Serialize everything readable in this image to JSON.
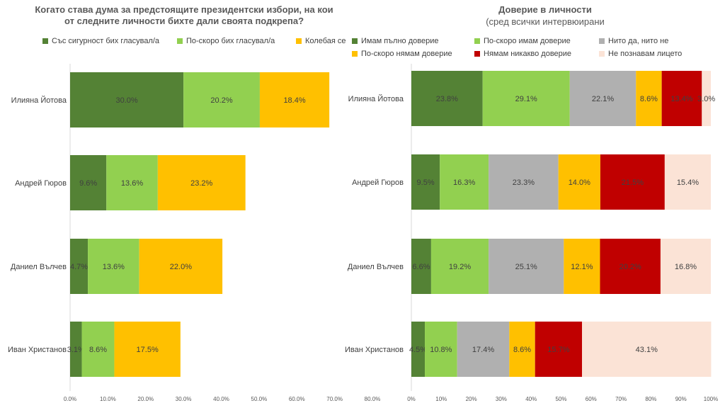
{
  "chart_data": [
    {
      "type": "bar",
      "orientation": "horizontal",
      "stacked": true,
      "title_line1": "Когато става дума за предстоящите президентски избори, на кои",
      "title_line2": "от следните личности бихте дали своята подкрепа?",
      "categories": [
        "Илияна Йотова",
        "Андрей Гюров",
        "Даниел Вълчев",
        "Иван Христанов"
      ],
      "series": [
        {
          "name": "Със сигурност бих гласувал/а",
          "color": "#548235",
          "values": [
            30.0,
            9.6,
            4.7,
            3.1
          ],
          "labels": [
            "30.0%",
            "9.6%",
            "4.7%",
            "3.1%"
          ]
        },
        {
          "name": "По-скоро бих гласувал/а",
          "color": "#92d050",
          "values": [
            20.2,
            13.6,
            13.6,
            8.6
          ],
          "labels": [
            "20.2%",
            "13.6%",
            "13.6%",
            "8.6%"
          ]
        },
        {
          "name": "Колебая се",
          "color": "#ffc000",
          "values": [
            18.4,
            23.2,
            22.0,
            17.5
          ],
          "labels": [
            "18.4%",
            "23.2%",
            "22.0%",
            "17.5%"
          ]
        }
      ],
      "xlim": [
        0,
        80
      ],
      "xticks": [
        "0.0%",
        "10.0%",
        "20.0%",
        "30.0%",
        "40.0%",
        "50.0%",
        "60.0%",
        "70.0%",
        "80.0%"
      ],
      "legend_position": "top",
      "grid": false
    },
    {
      "type": "bar",
      "orientation": "horizontal",
      "stacked": true,
      "title": "Доверие в личности",
      "subtitle": "(сред всички интервюирани",
      "categories": [
        "Илияна Йотова",
        "Андрей Гюров",
        "Даниел Вълчев",
        "Иван Христанов"
      ],
      "series": [
        {
          "name": "Имам пълно доверие",
          "color": "#548235",
          "values": [
            23.8,
            9.5,
            6.6,
            4.5
          ],
          "labels": [
            "23.8%",
            "9.5%",
            "6.6%",
            "4.5%"
          ]
        },
        {
          "name": "По-скоро имам доверие",
          "color": "#92d050",
          "values": [
            29.1,
            16.3,
            19.2,
            10.8
          ],
          "labels": [
            "29.1%",
            "16.3%",
            "19.2%",
            "10.8%"
          ]
        },
        {
          "name": "Нито да, нито не",
          "color": "#b0b0b0",
          "values": [
            22.1,
            23.3,
            25.1,
            17.4
          ],
          "labels": [
            "22.1%",
            "23.3%",
            "25.1%",
            "17.4%"
          ]
        },
        {
          "name": "По-скоро нямам доверие",
          "color": "#ffc000",
          "values": [
            8.6,
            14.0,
            12.1,
            8.6
          ],
          "labels": [
            "8.6%",
            "14.0%",
            "12.1%",
            "8.6%"
          ]
        },
        {
          "name": "Нямам никакво доверие",
          "color": "#c00000",
          "values": [
            13.4,
            21.5,
            20.2,
            15.7
          ],
          "labels": [
            "13.4%",
            "21.5%",
            "20.2%",
            "15.7%"
          ]
        },
        {
          "name": "Не познавам лицето",
          "color": "#fbe3d6",
          "values": [
            3.0,
            15.4,
            16.8,
            43.1
          ],
          "labels": [
            "3.0%",
            "15.4%",
            "16.8%",
            "43.1%"
          ]
        }
      ],
      "xlim": [
        0,
        100
      ],
      "xticks": [
        "0%",
        "10%",
        "20%",
        "30%",
        "40%",
        "50%",
        "60%",
        "70%",
        "80%",
        "90%",
        "100%"
      ],
      "legend_position": "top",
      "grid": false
    }
  ]
}
